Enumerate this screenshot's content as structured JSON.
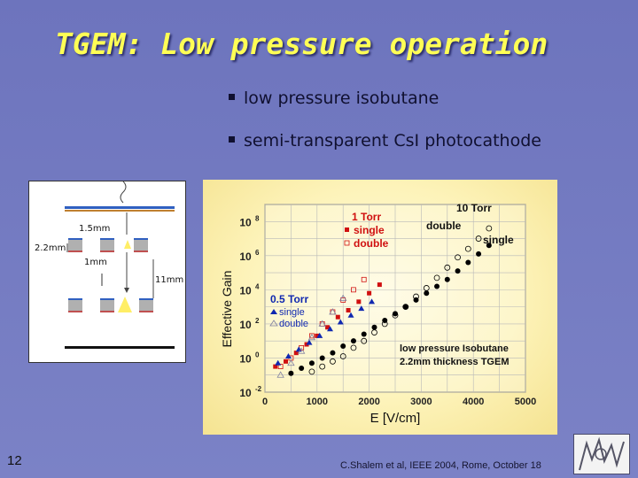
{
  "slide": {
    "title": "TGEM: Low pressure operation",
    "bullets": [
      "low pressure isobutane",
      "semi-transparent CsI photocathode"
    ],
    "page_number": "12",
    "footer": "C.Shalem et al,  IEEE 2004, Rome, October 18"
  },
  "schematic": {
    "labels": [
      "1.5mm",
      "2.2mm",
      "1mm",
      "11mm"
    ]
  },
  "chart_data": {
    "type": "scatter",
    "xlabel": "E [V/cm]",
    "ylabel": "Effective Gain",
    "xlim": [
      0,
      5000
    ],
    "ylim_log10": [
      -2,
      9
    ],
    "y_scale": "log",
    "xticks": [
      "0",
      "1000",
      "2000",
      "3000",
      "4000",
      "5000"
    ],
    "yticks": [
      {
        "base": "10",
        "exp": "8"
      },
      {
        "base": "10",
        "exp": "6"
      },
      {
        "base": "10",
        "exp": "4"
      },
      {
        "base": "10",
        "exp": "2"
      },
      {
        "base": "10",
        "exp": "0"
      },
      {
        "base": "10",
        "exp": "-2"
      }
    ],
    "grid": true,
    "annotations": {
      "ten_torr": "10 Torr",
      "ten_double": "double",
      "ten_single": "single",
      "one_torr": "1 Torr",
      "one_single": "single",
      "one_double": "double",
      "half_torr": "0.5 Torr",
      "half_single": "single",
      "half_double": "double",
      "note1": "low pressure Isobutane",
      "note2": "2.2mm thickness TGEM"
    },
    "series": [
      {
        "group": "10 Torr",
        "mode": "single",
        "marker": "circle-filled",
        "color": "#000000",
        "points": [
          [
            500,
            -0.9
          ],
          [
            700,
            -0.6
          ],
          [
            900,
            -0.3
          ],
          [
            1100,
            0.0
          ],
          [
            1300,
            0.3
          ],
          [
            1500,
            0.7
          ],
          [
            1700,
            1.0
          ],
          [
            1900,
            1.4
          ],
          [
            2100,
            1.8
          ],
          [
            2300,
            2.2
          ],
          [
            2500,
            2.6
          ],
          [
            2700,
            3.0
          ],
          [
            2900,
            3.4
          ],
          [
            3100,
            3.8
          ],
          [
            3300,
            4.2
          ],
          [
            3500,
            4.6
          ],
          [
            3700,
            5.1
          ],
          [
            3900,
            5.6
          ],
          [
            4100,
            6.1
          ],
          [
            4300,
            6.6
          ]
        ]
      },
      {
        "group": "10 Torr",
        "mode": "double",
        "marker": "circle-open",
        "color": "#000000",
        "points": [
          [
            900,
            -0.8
          ],
          [
            1100,
            -0.5
          ],
          [
            1300,
            -0.2
          ],
          [
            1500,
            0.1
          ],
          [
            1700,
            0.6
          ],
          [
            1900,
            1.0
          ],
          [
            2100,
            1.5
          ],
          [
            2300,
            2.0
          ],
          [
            2500,
            2.5
          ],
          [
            2700,
            3.0
          ],
          [
            2900,
            3.6
          ],
          [
            3100,
            4.1
          ],
          [
            3300,
            4.7
          ],
          [
            3500,
            5.3
          ],
          [
            3700,
            5.9
          ],
          [
            3900,
            6.4
          ],
          [
            4100,
            7.0
          ],
          [
            4300,
            7.6
          ]
        ]
      },
      {
        "group": "1 Torr",
        "mode": "single",
        "marker": "square-filled",
        "color": "#d01010",
        "points": [
          [
            200,
            -0.5
          ],
          [
            400,
            -0.2
          ],
          [
            600,
            0.3
          ],
          [
            800,
            0.8
          ],
          [
            1000,
            1.3
          ],
          [
            1200,
            1.8
          ],
          [
            1400,
            2.4
          ],
          [
            1600,
            2.8
          ],
          [
            1800,
            3.3
          ],
          [
            2000,
            3.8
          ],
          [
            2200,
            4.3
          ]
        ]
      },
      {
        "group": "1 Torr",
        "mode": "double",
        "marker": "square-open",
        "color": "#d01010",
        "points": [
          [
            300,
            -0.5
          ],
          [
            500,
            0.0
          ],
          [
            700,
            0.6
          ],
          [
            900,
            1.3
          ],
          [
            1100,
            2.0
          ],
          [
            1300,
            2.7
          ],
          [
            1500,
            3.4
          ],
          [
            1700,
            4.0
          ],
          [
            1900,
            4.6
          ]
        ]
      },
      {
        "group": "0.5 Torr",
        "mode": "single",
        "marker": "triangle-filled",
        "color": "#1028b0",
        "points": [
          [
            250,
            -0.3
          ],
          [
            450,
            0.1
          ],
          [
            650,
            0.5
          ],
          [
            850,
            0.9
          ],
          [
            1050,
            1.3
          ],
          [
            1250,
            1.7
          ],
          [
            1450,
            2.1
          ],
          [
            1650,
            2.5
          ],
          [
            1850,
            2.9
          ],
          [
            2050,
            3.3
          ]
        ]
      },
      {
        "group": "0.5 Torr",
        "mode": "double",
        "marker": "triangle-open",
        "color": "#8080a0",
        "points": [
          [
            300,
            -1.0
          ],
          [
            500,
            -0.3
          ],
          [
            700,
            0.4
          ],
          [
            900,
            1.2
          ],
          [
            1100,
            2.0
          ],
          [
            1300,
            2.7
          ],
          [
            1500,
            3.5
          ]
        ]
      }
    ]
  }
}
